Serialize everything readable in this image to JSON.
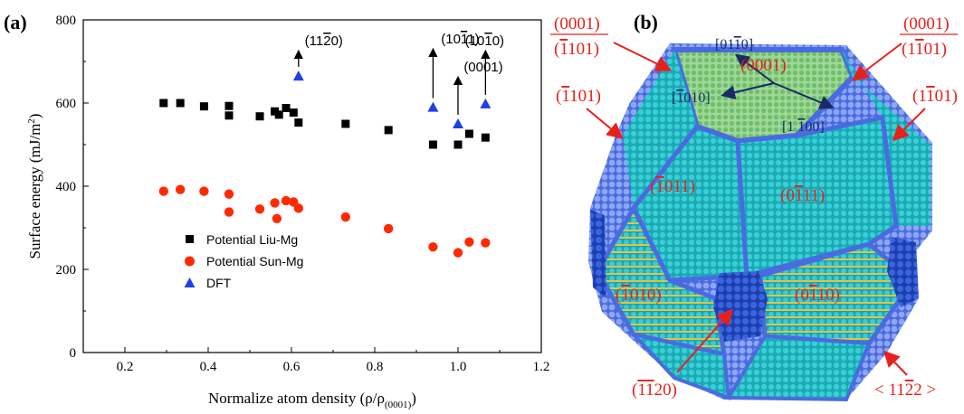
{
  "panel_a_label": "(a)",
  "panel_b_label": "(b)",
  "chart_data": {
    "type": "scatter",
    "xlabel": "Normalize atom density (ρ/ρ",
    "xlabel_sub": "(0001)",
    "xlabel_end": ")",
    "ylabel": "Surface energy (mJ/m",
    "ylabel_sup": "2",
    "ylabel_end": ")",
    "xlim": [
      0.1,
      1.2
    ],
    "ylim": [
      0,
      800
    ],
    "xticks": [
      "0.2",
      "0.4",
      "0.6",
      "0.8",
      "1.0",
      "1.2"
    ],
    "xtick_values": [
      0.2,
      0.4,
      0.6,
      0.8,
      1.0,
      1.2
    ],
    "yticks": [
      "0",
      "200",
      "400",
      "600",
      "800"
    ],
    "ytick_values": [
      0,
      200,
      400,
      600,
      800
    ],
    "legend_position": "lower-left",
    "series": [
      {
        "name": "Potential Liu-Mg",
        "marker": "square",
        "color": "#000000",
        "points": [
          [
            0.293,
            600
          ],
          [
            0.333,
            600
          ],
          [
            0.39,
            592
          ],
          [
            0.45,
            593
          ],
          [
            0.45,
            570
          ],
          [
            0.524,
            568
          ],
          [
            0.56,
            580
          ],
          [
            0.57,
            572
          ],
          [
            0.587,
            588
          ],
          [
            0.605,
            577
          ],
          [
            0.617,
            553
          ],
          [
            0.73,
            550
          ],
          [
            0.833,
            535
          ],
          [
            0.94,
            500
          ],
          [
            1.0,
            500
          ],
          [
            1.027,
            526
          ],
          [
            1.066,
            517
          ]
        ]
      },
      {
        "name": "Potential Sun-Mg",
        "marker": "circle",
        "color": "#ff2a00",
        "points": [
          [
            0.293,
            388
          ],
          [
            0.333,
            392
          ],
          [
            0.39,
            388
          ],
          [
            0.45,
            381
          ],
          [
            0.45,
            338
          ],
          [
            0.524,
            345
          ],
          [
            0.56,
            360
          ],
          [
            0.565,
            322
          ],
          [
            0.587,
            365
          ],
          [
            0.605,
            362
          ],
          [
            0.617,
            347
          ],
          [
            0.73,
            326
          ],
          [
            0.833,
            298
          ],
          [
            0.94,
            254
          ],
          [
            1.0,
            240
          ],
          [
            1.027,
            266
          ],
          [
            1.066,
            264
          ]
        ]
      },
      {
        "name": "DFT",
        "marker": "triangle",
        "color": "#1f3fe6",
        "points": [
          [
            0.617,
            665
          ],
          [
            0.94,
            590
          ],
          [
            1.0,
            550
          ],
          [
            1.066,
            598
          ]
        ]
      }
    ],
    "annotations": [
      {
        "text": "(11",
        "bar": "2",
        "end": "0)",
        "x": 0.617,
        "y": 665
      },
      {
        "text": "(10",
        "bar": "1",
        "end": "1)",
        "x": 0.94,
        "y": 590
      },
      {
        "text": "(0001)",
        "bar": "",
        "end": "",
        "x": 1.0,
        "y": 550
      },
      {
        "text": "(10",
        "bar": "1",
        "end": "0)",
        "x": 1.066,
        "y": 598
      }
    ]
  },
  "panel_b": {
    "labels": {
      "top_left_num": "(0001)",
      "top_left_den_pre": "(",
      "top_left_den_bar": "1",
      "top_left_den_post": "101)",
      "top_right_num": "(0001)",
      "top_right_den_pre": "(1",
      "top_right_den_bar": "1",
      "top_right_den_post": "01)",
      "left_mid_pre": "(",
      "left_mid_bar": "1",
      "left_mid_post": "101)",
      "right_mid_pre": "(1",
      "right_mid_bar": "1",
      "right_mid_post": "01)",
      "bottom_left_pre": "(",
      "bottom_left_bar1": "1",
      "bottom_left_bar2": "1",
      "bottom_left_post": "20)",
      "bottom_right_pre": "< 11",
      "bottom_right_bar": "2",
      "bottom_right_post": "2 >",
      "top_face": "(0001)",
      "face_left_pre": "(",
      "face_left_bar": "1",
      "face_left_post": "011)",
      "face_right_pre": "(0",
      "face_right_bar": "1",
      "face_right_post": "11)",
      "face_lower_left_pre": "(",
      "face_lower_left_bar": "1",
      "face_lower_left_post": "010)",
      "face_lower_right_pre": "(0",
      "face_lower_right_bar": "1",
      "face_lower_right_post": "10)"
    },
    "directions": {
      "d1_pre": "[01",
      "d1_bar": "1",
      "d1_post": "0]",
      "d2_pre": "[",
      "d2_bar": "1",
      "d2_post": "010]",
      "d3_pre": "[1 ",
      "d3_bar": "1",
      "d3_post": "00]"
    },
    "colors": {
      "face_green": "#7fc97a",
      "face_cyan": "#27c3c3",
      "face_blue": "#2c5fc9",
      "edge_atoms": "#6f8ef0",
      "label_red": "#e8201a"
    }
  }
}
